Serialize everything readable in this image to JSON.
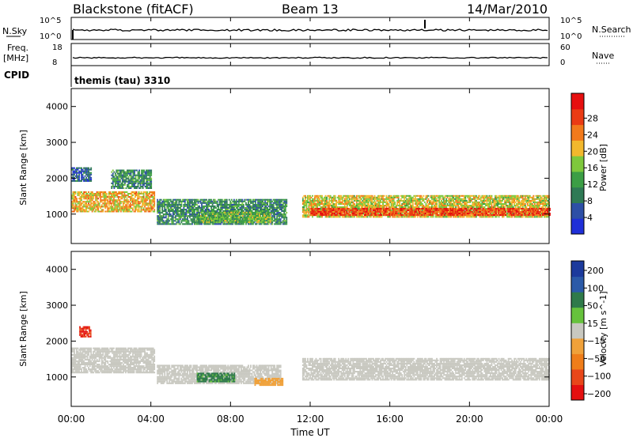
{
  "header": {
    "station": "Blackstone (fitACF)",
    "beam": "Beam 13",
    "date": "14/Mar/2010"
  },
  "aux_panels": {
    "nsky_label": "N.Sky",
    "nsky_ticks": [
      "10^5",
      "10^0"
    ],
    "nsearch_label": "N.Search",
    "nsearch_ticks": [
      "10^5",
      "10^0"
    ],
    "freq_label": "Freq.",
    "freq_unit": "[MHz]",
    "freq_ticks": [
      "18",
      "8"
    ],
    "nave_label": "Nave",
    "nave_ticks": [
      "60",
      "0"
    ],
    "cpid_label": "CPID",
    "cpid_value": "themis (tau) 3310"
  },
  "colors": {
    "power_scale": [
      "#1f2fd8",
      "#2d4fa6",
      "#2f7a55",
      "#3c9e45",
      "#7ec83c",
      "#f2b82d",
      "#f27a1c",
      "#ea3b14",
      "#e60f0f"
    ],
    "velocity_scale": [
      "#1c3a9c",
      "#2b5aa8",
      "#2f7a4a",
      "#66c23c",
      "#c8c8c0",
      "#f0a13a",
      "#ef7d1a",
      "#e8471a",
      "#e41010"
    ]
  },
  "chart_data": [
    {
      "type": "heatmap",
      "title": "Power",
      "ylabel": "Slant Range [km]",
      "xlabel": "Time UT",
      "x_ticks": [
        "00:00",
        "04:00",
        "08:00",
        "12:00",
        "16:00",
        "20:00",
        "00:00"
      ],
      "y_ticks": [
        "1000",
        "2000",
        "3000",
        "4000"
      ],
      "colorbar_label": "Power [dB]",
      "colorbar_ticks": [
        "4",
        "8",
        "12",
        "16",
        "20",
        "24",
        "28"
      ],
      "ylim": [
        180,
        4500
      ],
      "xlim_hours": [
        0,
        24
      ],
      "regions": [
        {
          "t": [
            0.0,
            4.2
          ],
          "r": [
            1050,
            1600
          ],
          "level": 20
        },
        {
          "t": [
            0.0,
            1.0
          ],
          "r": [
            1900,
            2300
          ],
          "level": 6
        },
        {
          "t": [
            2.0,
            4.0
          ],
          "r": [
            1700,
            2200
          ],
          "level": 10
        },
        {
          "t": [
            4.3,
            10.8
          ],
          "r": [
            700,
            1400
          ],
          "level": 10
        },
        {
          "t": [
            6.3,
            10.0
          ],
          "r": [
            750,
            1050
          ],
          "level": 14
        },
        {
          "t": [
            11.6,
            24.0
          ],
          "r": [
            900,
            1500
          ],
          "level": 18
        },
        {
          "t": [
            12.0,
            24.0
          ],
          "r": [
            950,
            1150
          ],
          "level": 26
        }
      ]
    },
    {
      "type": "heatmap",
      "title": "Velocity",
      "ylabel": "Slant Range [km]",
      "xlabel": "Time UT",
      "x_ticks": [
        "00:00",
        "04:00",
        "08:00",
        "12:00",
        "16:00",
        "20:00",
        "00:00"
      ],
      "y_ticks": [
        "1000",
        "2000",
        "3000",
        "4000"
      ],
      "colorbar_label": "Velocity [m s^-1]",
      "colorbar_ticks": [
        "200",
        "100",
        "50",
        "15",
        "-15",
        "-50",
        "-100",
        "-200"
      ],
      "ylim": [
        180,
        4500
      ],
      "xlim_hours": [
        0,
        24
      ],
      "regions": [
        {
          "t": [
            0.0,
            4.2
          ],
          "r": [
            1100,
            1800
          ],
          "level": 0
        },
        {
          "t": [
            0.4,
            1.0
          ],
          "r": [
            2100,
            2400
          ],
          "level": -180
        },
        {
          "t": [
            4.3,
            10.5
          ],
          "r": [
            800,
            1300
          ],
          "level": 0
        },
        {
          "t": [
            6.3,
            8.2
          ],
          "r": [
            850,
            1100
          ],
          "level": 40
        },
        {
          "t": [
            9.2,
            10.6
          ],
          "r": [
            750,
            950
          ],
          "level": -40
        },
        {
          "t": [
            11.6,
            24.0
          ],
          "r": [
            900,
            1500
          ],
          "level": 0
        }
      ]
    }
  ]
}
